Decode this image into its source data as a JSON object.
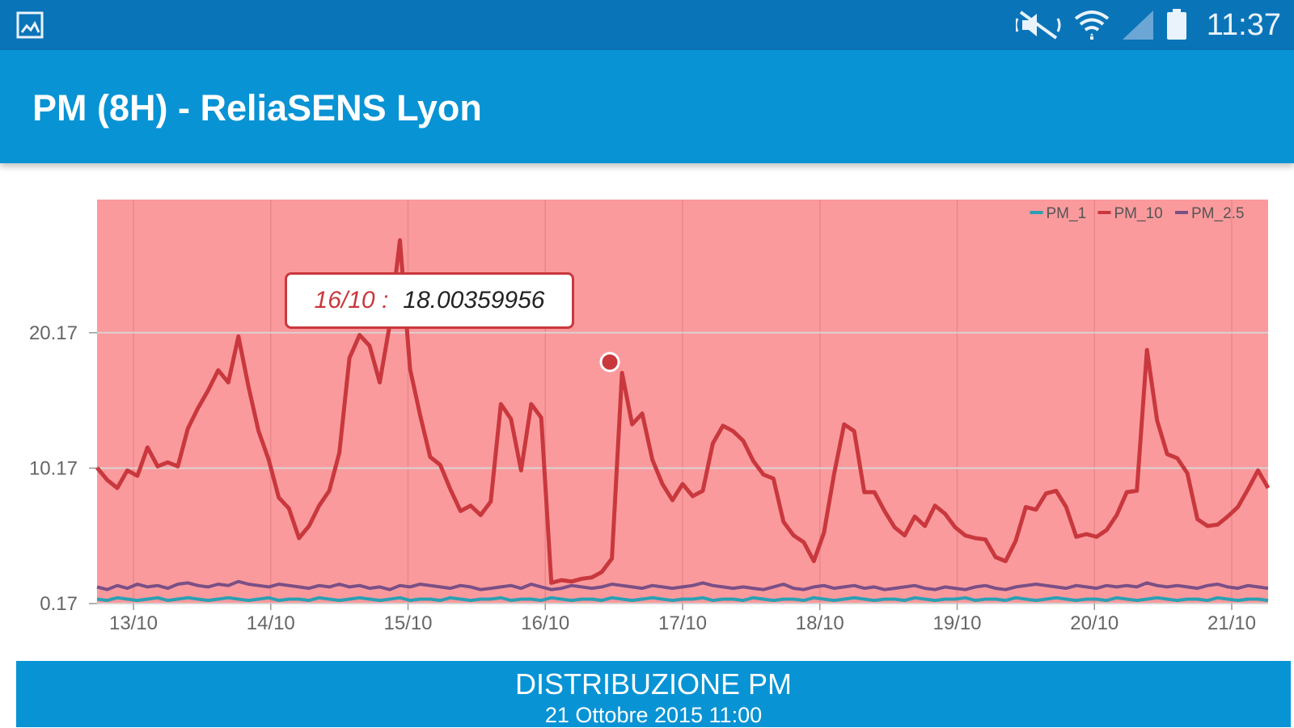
{
  "status_bar": {
    "time": "11:37",
    "icons": [
      "gallery-notification-icon",
      "mute-icon",
      "wifi-icon",
      "signal-icon",
      "battery-icon"
    ]
  },
  "app_bar": {
    "title": "PM (8H) - ReliaSENS Lyon"
  },
  "tooltip": {
    "date": "16/10 :",
    "value": "18.00359956"
  },
  "distribution": {
    "title": "DISTRIBUZIONE PM",
    "date": "21 Ottobre 2015 11:00"
  },
  "colors": {
    "status_bar": "#0a74b8",
    "app_bar": "#0893d4",
    "plot_background": "#fb9a9d",
    "pm10": "#c9383d",
    "pm25": "#7a4f86",
    "pm1": "#2aa0b4"
  },
  "chart_data": {
    "type": "line",
    "title": "",
    "xlabel": "",
    "ylabel": "",
    "x_ticks": [
      "13/10",
      "14/10",
      "15/10",
      "16/10",
      "17/10",
      "18/10",
      "19/10",
      "20/10",
      "21/10"
    ],
    "y_ticks": [
      "0.17",
      "10.17",
      "20.17"
    ],
    "ylim": [
      0.17,
      30
    ],
    "legend": [
      "PM_1",
      "PM_10",
      "PM_2.5"
    ],
    "legend_position": "top-right",
    "grid": true,
    "series": [
      {
        "name": "PM_10",
        "color": "#c9383d",
        "values": [
          10.2,
          9.3,
          8.7,
          10.0,
          9.6,
          11.7,
          10.3,
          10.6,
          10.3,
          13.1,
          14.6,
          15.9,
          17.4,
          16.5,
          19.9,
          16.2,
          12.9,
          10.8,
          8.0,
          7.2,
          5.0,
          5.9,
          7.4,
          8.5,
          11.3,
          18.3,
          20.0,
          19.2,
          16.5,
          20.8,
          27.0,
          17.5,
          14.1,
          11.0,
          10.4,
          8.6,
          7.0,
          7.4,
          6.7,
          7.7,
          14.9,
          13.8,
          10.0,
          14.9,
          13.9,
          1.7,
          1.9,
          1.8,
          2.0,
          2.1,
          2.5,
          3.5,
          17.2,
          13.4,
          14.2,
          10.8,
          9.0,
          7.8,
          9.0,
          8.1,
          8.5,
          12.0,
          13.3,
          12.9,
          12.2,
          10.7,
          9.7,
          9.4,
          6.2,
          5.2,
          4.7,
          3.3,
          5.4,
          9.7,
          13.4,
          12.9,
          8.4,
          8.4,
          7.0,
          5.8,
          5.2,
          6.6,
          5.9,
          7.4,
          6.8,
          5.8,
          5.2,
          5.0,
          4.9,
          3.6,
          3.3,
          4.8,
          7.3,
          7.1,
          8.3,
          8.5,
          7.3,
          5.1,
          5.3,
          5.1,
          5.6,
          6.7,
          8.4,
          8.5,
          18.9,
          13.7,
          11.2,
          10.9,
          9.8,
          6.4,
          5.9,
          6.0,
          6.6,
          7.3,
          8.6,
          10.0,
          8.7
        ]
      },
      {
        "name": "PM_2.5",
        "color": "#7a4f86",
        "values": [
          1.4,
          1.2,
          1.5,
          1.3,
          1.6,
          1.4,
          1.5,
          1.3,
          1.6,
          1.7,
          1.5,
          1.4,
          1.6,
          1.5,
          1.8,
          1.6,
          1.5,
          1.4,
          1.6,
          1.5,
          1.4,
          1.3,
          1.5,
          1.4,
          1.6,
          1.4,
          1.5,
          1.3,
          1.4,
          1.2,
          1.5,
          1.4,
          1.6,
          1.5,
          1.4,
          1.3,
          1.5,
          1.4,
          1.2,
          1.3,
          1.4,
          1.5,
          1.3,
          1.6,
          1.4,
          1.2,
          1.3,
          1.5,
          1.4,
          1.3,
          1.4,
          1.6,
          1.5,
          1.4,
          1.3,
          1.5,
          1.4,
          1.3,
          1.4,
          1.5,
          1.7,
          1.5,
          1.4,
          1.3,
          1.4,
          1.3,
          1.2,
          1.4,
          1.6,
          1.3,
          1.2,
          1.4,
          1.5,
          1.3,
          1.4,
          1.5,
          1.3,
          1.4,
          1.2,
          1.3,
          1.4,
          1.5,
          1.3,
          1.2,
          1.4,
          1.3,
          1.2,
          1.4,
          1.5,
          1.3,
          1.2,
          1.4,
          1.5,
          1.6,
          1.5,
          1.4,
          1.3,
          1.5,
          1.4,
          1.3,
          1.5,
          1.4,
          1.5,
          1.4,
          1.7,
          1.5,
          1.4,
          1.5,
          1.4,
          1.3,
          1.5,
          1.6,
          1.4,
          1.3,
          1.5,
          1.4,
          1.3
        ]
      },
      {
        "name": "PM_1",
        "color": "#2aa0b4",
        "values": [
          0.5,
          0.4,
          0.6,
          0.5,
          0.4,
          0.5,
          0.6,
          0.4,
          0.5,
          0.6,
          0.5,
          0.4,
          0.5,
          0.6,
          0.5,
          0.4,
          0.5,
          0.6,
          0.4,
          0.5,
          0.5,
          0.4,
          0.6,
          0.5,
          0.4,
          0.5,
          0.6,
          0.5,
          0.4,
          0.5,
          0.6,
          0.4,
          0.5,
          0.5,
          0.4,
          0.6,
          0.5,
          0.4,
          0.5,
          0.5,
          0.6,
          0.4,
          0.5,
          0.5,
          0.4,
          0.6,
          0.5,
          0.4,
          0.5,
          0.5,
          0.4,
          0.6,
          0.5,
          0.4,
          0.5,
          0.6,
          0.5,
          0.4,
          0.5,
          0.5,
          0.6,
          0.4,
          0.5,
          0.5,
          0.4,
          0.6,
          0.5,
          0.4,
          0.5,
          0.5,
          0.4,
          0.6,
          0.5,
          0.4,
          0.5,
          0.6,
          0.5,
          0.4,
          0.5,
          0.5,
          0.4,
          0.6,
          0.5,
          0.4,
          0.5,
          0.5,
          0.6,
          0.4,
          0.5,
          0.5,
          0.4,
          0.6,
          0.5,
          0.4,
          0.5,
          0.6,
          0.5,
          0.4,
          0.5,
          0.5,
          0.4,
          0.6,
          0.5,
          0.4,
          0.5,
          0.6,
          0.5,
          0.4,
          0.5,
          0.5,
          0.4,
          0.6,
          0.5,
          0.4,
          0.5,
          0.5,
          0.4
        ]
      }
    ],
    "highlight": {
      "x": "16/10",
      "value": 18.00359956,
      "series": "PM_10"
    }
  }
}
